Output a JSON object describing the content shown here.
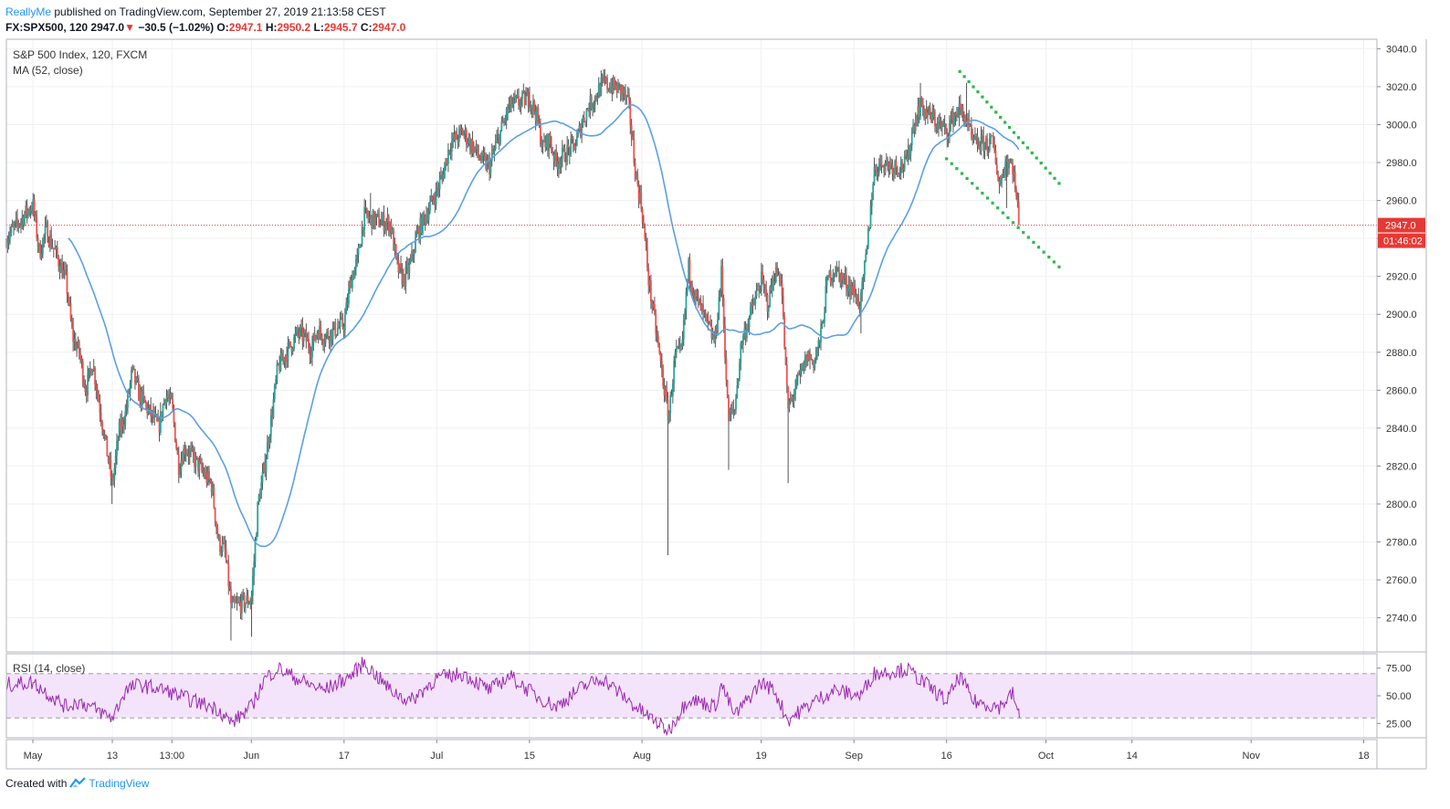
{
  "header": {
    "publisher": "ReallyMe",
    "published_text": "published on TradingView.com, September 27, 2019 21:13:58 CEST",
    "symbol_interval": "FX:SPX500, 120",
    "last": "2947.0",
    "change": "−30.5 (−1.02%)",
    "o_label": "O:",
    "o_value": "2947.1",
    "h_label": "H:",
    "h_value": "2950.2",
    "l_label": "L:",
    "l_value": "2945.7",
    "c_label": "C:",
    "c_value": "2947.0"
  },
  "legend": {
    "series_title": "S&P 500 Index, 120, FXCM",
    "ma_title": "MA (52, close)",
    "rsi_title": "RSI (14, close)"
  },
  "footer": {
    "created_with": "Created with",
    "brand": "TradingView"
  },
  "colors": {
    "up": "#26a69a",
    "down": "#ef5350",
    "candle": "#555555",
    "ma": "#5aa0e6",
    "rsi": "#9c27b0",
    "rsi_band": "#f3e4fb",
    "channel": "#2db84a",
    "price_line": "#e53935"
  },
  "chart_data": [
    {
      "type": "candlestick",
      "title": "S&P 500 Index, 120, FXCM",
      "overlay": "MA (52, close)",
      "ylim": [
        2722,
        3045
      ],
      "y_ticks": [
        2740,
        2760,
        2780,
        2800,
        2820,
        2840,
        2860,
        2880,
        2900,
        2920,
        2940,
        2960,
        2980,
        3000,
        3020,
        3040
      ],
      "y_tick_labels": [
        "2740.0",
        "2760.0",
        "2780.0",
        "2800.0",
        "2820.0",
        "2840.0",
        "2860.0",
        "2880.0",
        "2900.0",
        "2920.0",
        "2940.0",
        "2960.0",
        "2980.0",
        "3000.0",
        "3020.0",
        "3040.0"
      ],
      "x_tick_labels": [
        "May",
        "13",
        "13:00",
        "Jun",
        "17",
        "Jul",
        "15",
        "Aug",
        "19",
        "Sep",
        "16",
        "Oct",
        "14",
        "Nov",
        "18"
      ],
      "x_tick_dates": [
        "2019-05-01",
        "2019-05-13",
        "2019-05-22",
        "2019-06-03",
        "2019-06-17",
        "2019-07-01",
        "2019-07-15",
        "2019-08-01",
        "2019-08-19",
        "2019-09-02",
        "2019-09-16",
        "2019-10-01",
        "2019-10-14",
        "2019-11-01",
        "2019-11-18"
      ],
      "x_range": [
        "2019-04-27",
        "2019-11-20"
      ],
      "price_path": [
        [
          "2019-04-27",
          2940
        ],
        [
          "2019-05-01",
          2958
        ],
        [
          "2019-05-02",
          2932
        ],
        [
          "2019-05-03",
          2945
        ],
        [
          "2019-05-06",
          2918
        ],
        [
          "2019-05-07",
          2888
        ],
        [
          "2019-05-08",
          2880
        ],
        [
          "2019-05-09",
          2860
        ],
        [
          "2019-05-10",
          2875
        ],
        [
          "2019-05-13",
          2810
        ],
        [
          "2019-05-14",
          2838
        ],
        [
          "2019-05-15",
          2848
        ],
        [
          "2019-05-16",
          2870
        ],
        [
          "2019-05-17",
          2858
        ],
        [
          "2019-05-20",
          2840
        ],
        [
          "2019-05-21",
          2858
        ],
        [
          "2019-05-22",
          2852
        ],
        [
          "2019-05-23",
          2820
        ],
        [
          "2019-05-24",
          2830
        ],
        [
          "2019-05-28",
          2810
        ],
        [
          "2019-05-29",
          2780
        ],
        [
          "2019-05-30",
          2775
        ],
        [
          "2019-05-31",
          2745
        ],
        [
          "2019-06-03",
          2750
        ],
        [
          "2019-06-04",
          2800
        ],
        [
          "2019-06-05",
          2820
        ],
        [
          "2019-06-06",
          2845
        ],
        [
          "2019-06-07",
          2872
        ],
        [
          "2019-06-10",
          2890
        ],
        [
          "2019-06-11",
          2888
        ],
        [
          "2019-06-12",
          2882
        ],
        [
          "2019-06-13",
          2892
        ],
        [
          "2019-06-14",
          2888
        ],
        [
          "2019-06-17",
          2895
        ],
        [
          "2019-06-18",
          2918
        ],
        [
          "2019-06-19",
          2928
        ],
        [
          "2019-06-20",
          2952
        ],
        [
          "2019-06-21",
          2950
        ],
        [
          "2019-06-24",
          2948
        ],
        [
          "2019-06-25",
          2925
        ],
        [
          "2019-06-26",
          2918
        ],
        [
          "2019-06-27",
          2926
        ],
        [
          "2019-06-28",
          2942
        ],
        [
          "2019-07-01",
          2965
        ],
        [
          "2019-07-02",
          2975
        ],
        [
          "2019-07-03",
          2990
        ],
        [
          "2019-07-05",
          2996
        ],
        [
          "2019-07-08",
          2980
        ],
        [
          "2019-07-09",
          2978
        ],
        [
          "2019-07-10",
          2990
        ],
        [
          "2019-07-11",
          3000
        ],
        [
          "2019-07-12",
          3010
        ],
        [
          "2019-07-15",
          3014
        ],
        [
          "2019-07-16",
          3006
        ],
        [
          "2019-07-17",
          2988
        ],
        [
          "2019-07-18",
          2992
        ],
        [
          "2019-07-19",
          2980
        ],
        [
          "2019-07-22",
          2990
        ],
        [
          "2019-07-23",
          3002
        ],
        [
          "2019-07-24",
          3010
        ],
        [
          "2019-07-25",
          3015
        ],
        [
          "2019-07-26",
          3022
        ],
        [
          "2019-07-29",
          3018
        ],
        [
          "2019-07-30",
          3010
        ],
        [
          "2019-07-31",
          2975
        ],
        [
          "2019-08-01",
          2955
        ],
        [
          "2019-08-02",
          2918
        ],
        [
          "2019-08-05",
          2845
        ],
        [
          "2019-08-06",
          2878
        ],
        [
          "2019-08-07",
          2880
        ],
        [
          "2019-08-08",
          2925
        ],
        [
          "2019-08-09",
          2910
        ],
        [
          "2019-08-12",
          2885
        ],
        [
          "2019-08-13",
          2922
        ],
        [
          "2019-08-14",
          2845
        ],
        [
          "2019-08-15",
          2850
        ],
        [
          "2019-08-16",
          2885
        ],
        [
          "2019-08-19",
          2918
        ],
        [
          "2019-08-20",
          2905
        ],
        [
          "2019-08-21",
          2922
        ],
        [
          "2019-08-22",
          2920
        ],
        [
          "2019-08-23",
          2850
        ],
        [
          "2019-08-26",
          2878
        ],
        [
          "2019-08-27",
          2875
        ],
        [
          "2019-08-28",
          2888
        ],
        [
          "2019-08-29",
          2918
        ],
        [
          "2019-08-30",
          2924
        ],
        [
          "2019-09-02",
          2912
        ],
        [
          "2019-09-03",
          2905
        ],
        [
          "2019-09-04",
          2935
        ],
        [
          "2019-09-05",
          2975
        ],
        [
          "2019-09-06",
          2980
        ],
        [
          "2019-09-09",
          2978
        ],
        [
          "2019-09-10",
          2980
        ],
        [
          "2019-09-11",
          3000
        ],
        [
          "2019-09-12",
          3010
        ],
        [
          "2019-09-13",
          3006
        ],
        [
          "2019-09-16",
          2996
        ],
        [
          "2019-09-17",
          3004
        ],
        [
          "2019-09-18",
          3008
        ],
        [
          "2019-09-19",
          3002
        ],
        [
          "2019-09-20",
          2990
        ],
        [
          "2019-09-23",
          2990
        ],
        [
          "2019-09-24",
          2968
        ],
        [
          "2019-09-25",
          2982
        ],
        [
          "2019-09-26",
          2978
        ],
        [
          "2019-09-27",
          2947
        ]
      ],
      "lows": [
        [
          "2019-05-13",
          2800
        ],
        [
          "2019-05-31",
          2728
        ],
        [
          "2019-06-03",
          2730
        ],
        [
          "2019-08-05",
          2773
        ],
        [
          "2019-08-14",
          2818
        ],
        [
          "2019-08-23",
          2811
        ],
        [
          "2019-09-03",
          2890
        ],
        [
          "2019-09-25",
          2956
        ]
      ],
      "highs": [
        [
          "2019-04-30",
          2960
        ],
        [
          "2019-06-21",
          2964
        ],
        [
          "2019-07-15",
          3020
        ],
        [
          "2019-07-26",
          3027
        ],
        [
          "2019-09-12",
          3022
        ],
        [
          "2019-09-19",
          3022
        ]
      ],
      "current_price": 2947.0,
      "current_price_label": "2947.0",
      "countdown_label": "01:46:02",
      "channel_upper": [
        [
          "2019-09-18",
          3028
        ],
        [
          "2019-10-03",
          2969
        ]
      ],
      "channel_lower": [
        [
          "2019-09-16",
          2982
        ],
        [
          "2019-10-03",
          2925
        ]
      ]
    },
    {
      "type": "line",
      "title": "RSI (14, close)",
      "ylim": [
        12,
        88
      ],
      "band": [
        30,
        70
      ],
      "y_ticks": [
        25,
        50,
        75
      ],
      "y_tick_labels": [
        "25.00",
        "50.00",
        "75.00"
      ],
      "rsi_path": [
        [
          "2019-04-27",
          60
        ],
        [
          "2019-05-01",
          62
        ],
        [
          "2019-05-06",
          40
        ],
        [
          "2019-05-08",
          45
        ],
        [
          "2019-05-13",
          30
        ],
        [
          "2019-05-15",
          55
        ],
        [
          "2019-05-17",
          60
        ],
        [
          "2019-05-21",
          55
        ],
        [
          "2019-05-24",
          48
        ],
        [
          "2019-05-29",
          38
        ],
        [
          "2019-05-31",
          25
        ],
        [
          "2019-06-03",
          40
        ],
        [
          "2019-06-05",
          65
        ],
        [
          "2019-06-07",
          75
        ],
        [
          "2019-06-11",
          62
        ],
        [
          "2019-06-14",
          55
        ],
        [
          "2019-06-18",
          68
        ],
        [
          "2019-06-20",
          80
        ],
        [
          "2019-06-24",
          55
        ],
        [
          "2019-06-27",
          45
        ],
        [
          "2019-07-01",
          66
        ],
        [
          "2019-07-05",
          70
        ],
        [
          "2019-07-09",
          55
        ],
        [
          "2019-07-12",
          68
        ],
        [
          "2019-07-16",
          50
        ],
        [
          "2019-07-19",
          40
        ],
        [
          "2019-07-23",
          58
        ],
        [
          "2019-07-26",
          66
        ],
        [
          "2019-07-31",
          40
        ],
        [
          "2019-08-05",
          18
        ],
        [
          "2019-08-08",
          48
        ],
        [
          "2019-08-12",
          40
        ],
        [
          "2019-08-13",
          60
        ],
        [
          "2019-08-15",
          32
        ],
        [
          "2019-08-19",
          62
        ],
        [
          "2019-08-21",
          55
        ],
        [
          "2019-08-23",
          28
        ],
        [
          "2019-08-27",
          45
        ],
        [
          "2019-08-30",
          55
        ],
        [
          "2019-09-03",
          50
        ],
        [
          "2019-09-05",
          70
        ],
        [
          "2019-09-10",
          74
        ],
        [
          "2019-09-13",
          60
        ],
        [
          "2019-09-16",
          45
        ],
        [
          "2019-09-18",
          68
        ],
        [
          "2019-09-20",
          45
        ],
        [
          "2019-09-24",
          40
        ],
        [
          "2019-09-26",
          52
        ],
        [
          "2019-09-27",
          30
        ]
      ]
    }
  ]
}
